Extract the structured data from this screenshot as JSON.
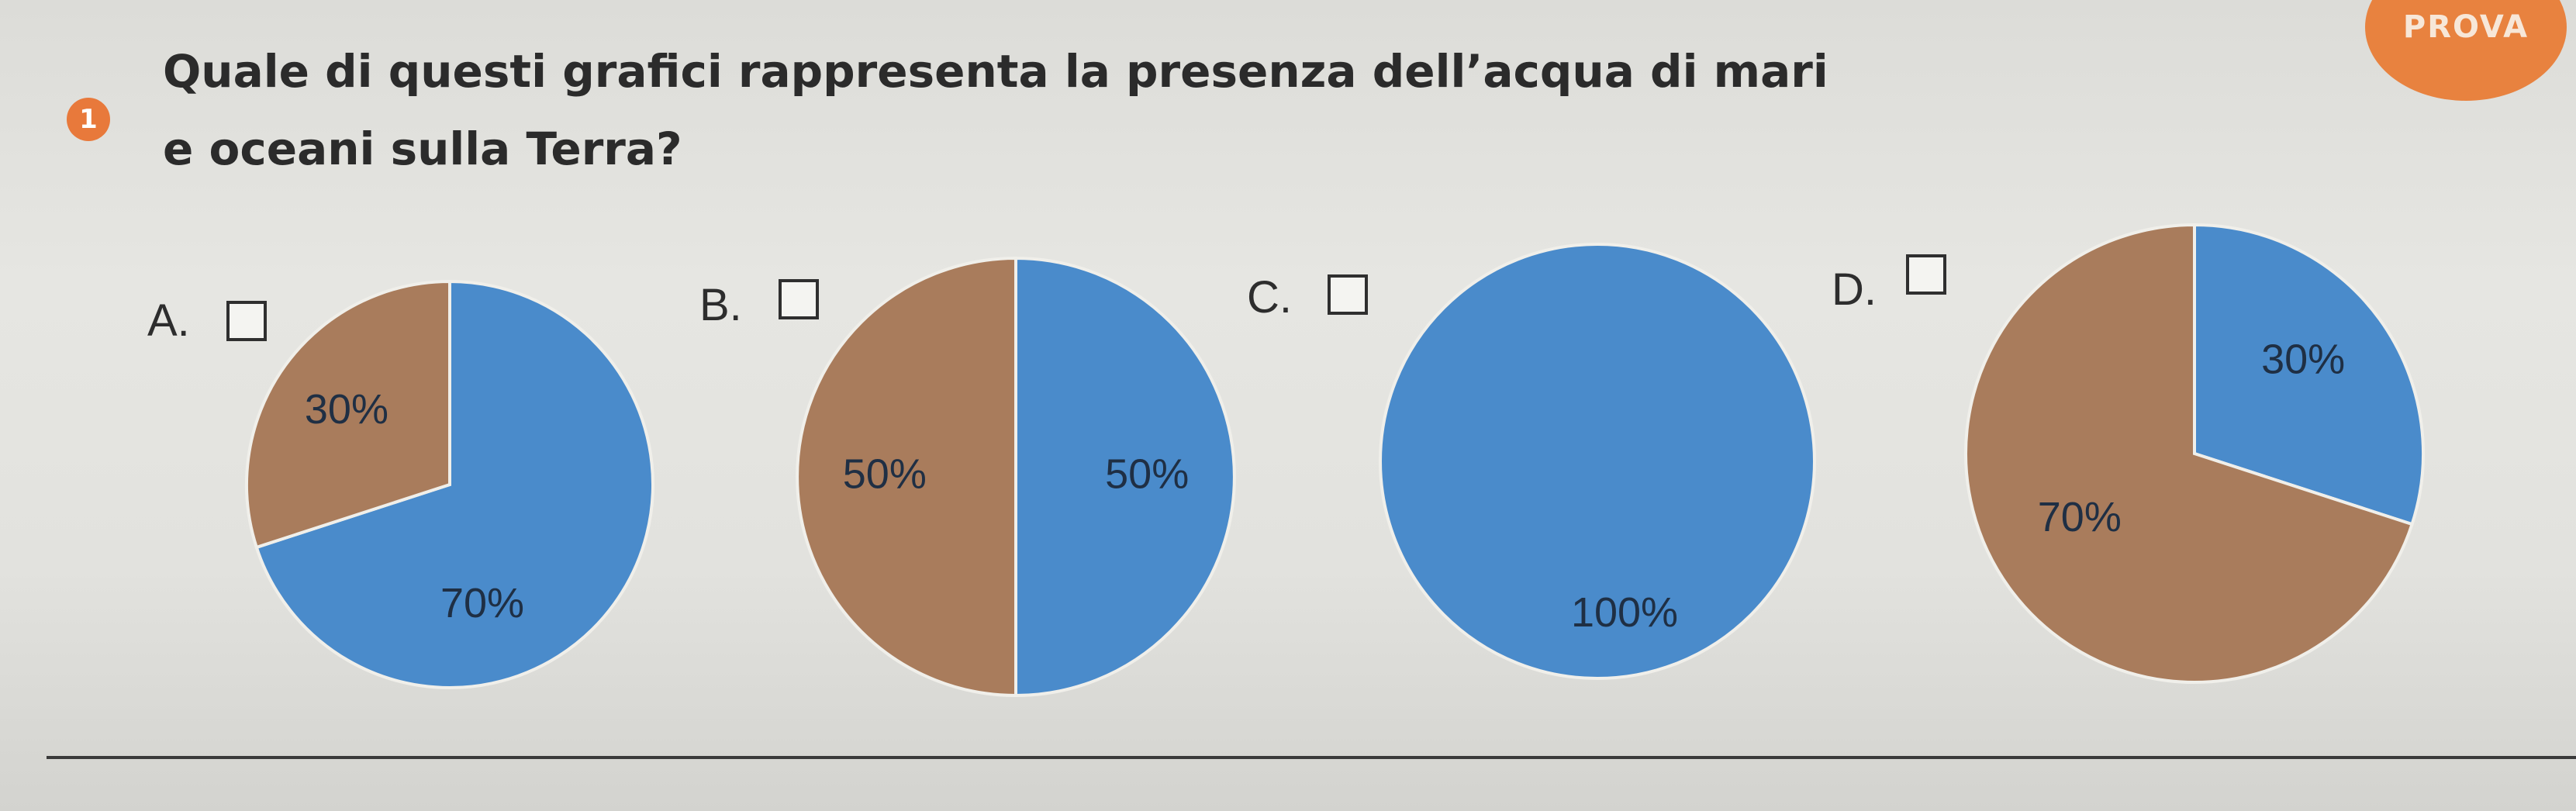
{
  "question": {
    "number": "1",
    "line1": "Quale di questi grafici rappresenta la presenza dell’acqua di mari",
    "line2": "e oceani sulla Terra?"
  },
  "badge": {
    "text": "PROVA"
  },
  "colors": {
    "water": "#4a8bcb",
    "land": "#a97c5c",
    "accent": "#e8793b"
  },
  "options": [
    {
      "label": "A."
    },
    {
      "label": "B."
    },
    {
      "label": "C."
    },
    {
      "label": "D."
    }
  ],
  "chart_data": [
    {
      "type": "pie",
      "title": "",
      "slices": [
        {
          "category": "water",
          "value": 70,
          "label": "70%"
        },
        {
          "category": "land",
          "value": 30,
          "label": "30%"
        }
      ]
    },
    {
      "type": "pie",
      "title": "",
      "slices": [
        {
          "category": "water",
          "value": 50,
          "label": "50%"
        },
        {
          "category": "land",
          "value": 50,
          "label": "50%"
        }
      ]
    },
    {
      "type": "pie",
      "title": "",
      "slices": [
        {
          "category": "water",
          "value": 100,
          "label": "100%"
        }
      ]
    },
    {
      "type": "pie",
      "title": "",
      "slices": [
        {
          "category": "water",
          "value": 30,
          "label": "30%"
        },
        {
          "category": "land",
          "value": 70,
          "label": "70%"
        }
      ]
    }
  ]
}
